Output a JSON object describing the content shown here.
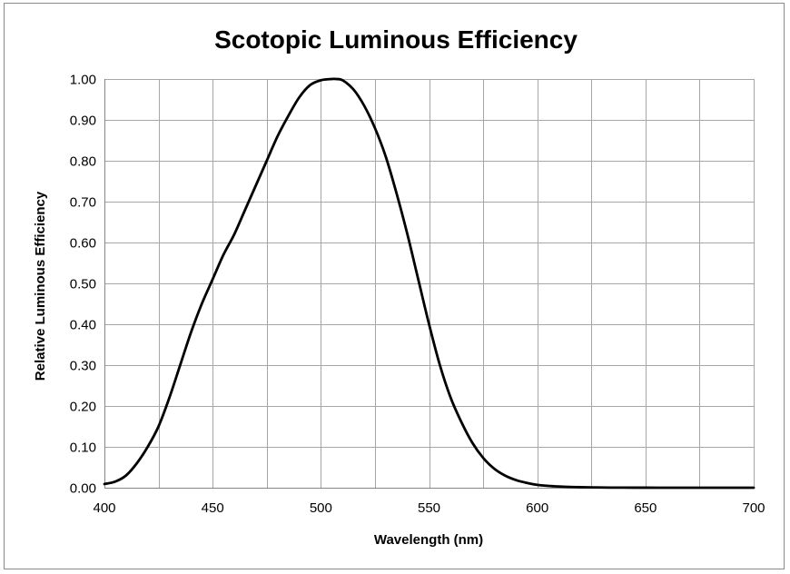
{
  "chart_data": {
    "type": "line",
    "title": "Scotopic Luminous Efficiency",
    "xlabel": "Wavelength (nm)",
    "ylabel": "Relative Luminous Efficiency",
    "xlim": [
      400,
      700
    ],
    "ylim": [
      0,
      1
    ],
    "x_ticks": [
      "400",
      "450",
      "500",
      "550",
      "600",
      "650",
      "700"
    ],
    "y_ticks": [
      "0.00",
      "0.10",
      "0.20",
      "0.30",
      "0.40",
      "0.50",
      "0.60",
      "0.70",
      "0.80",
      "0.90",
      "1.00"
    ],
    "grid": true,
    "legend": "none",
    "line_color": "#000000",
    "series": [
      {
        "x": [
          400,
          405,
          410,
          415,
          420,
          425,
          430,
          435,
          440,
          445,
          450,
          455,
          460,
          465,
          470,
          475,
          480,
          485,
          490,
          495,
          500,
          505,
          507,
          510,
          515,
          520,
          525,
          530,
          535,
          540,
          545,
          550,
          555,
          560,
          565,
          570,
          575,
          580,
          585,
          590,
          595,
          600,
          605,
          610,
          615,
          620,
          625,
          630,
          635,
          640,
          645,
          650,
          660,
          670,
          680,
          690,
          700
        ],
        "y": [
          0.009,
          0.015,
          0.03,
          0.06,
          0.1,
          0.15,
          0.22,
          0.3,
          0.38,
          0.45,
          0.51,
          0.57,
          0.62,
          0.68,
          0.74,
          0.8,
          0.86,
          0.91,
          0.955,
          0.985,
          0.997,
          1.0,
          1.0,
          0.997,
          0.975,
          0.935,
          0.88,
          0.81,
          0.72,
          0.62,
          0.51,
          0.4,
          0.3,
          0.22,
          0.16,
          0.11,
          0.073,
          0.047,
          0.03,
          0.019,
          0.012,
          0.007,
          0.0045,
          0.003,
          0.002,
          0.0012,
          0.0008,
          0.0005,
          0.0003,
          0.0002,
          0.0001,
          0.0001,
          0.0,
          0.0,
          0.0,
          0.0,
          0.0
        ]
      }
    ]
  }
}
